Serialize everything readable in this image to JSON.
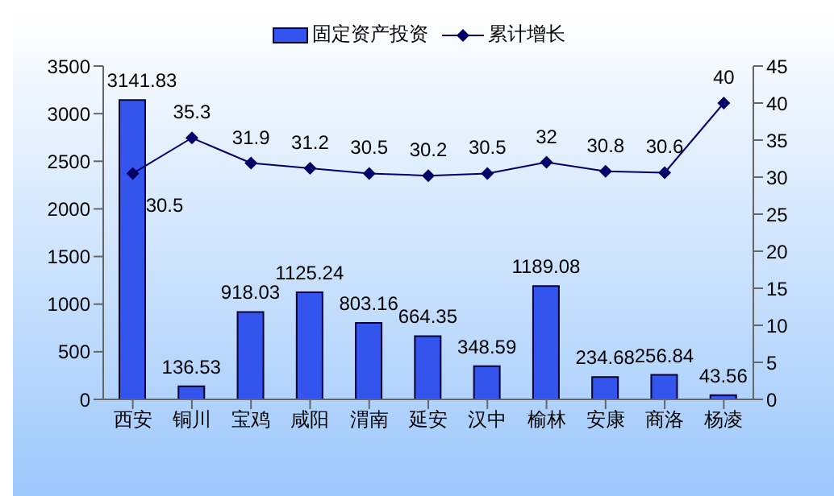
{
  "chart_data": {
    "type": "bar",
    "categories": [
      "西安",
      "铜川",
      "宝鸡",
      "咸阳",
      "渭南",
      "延安",
      "汉中",
      "榆林",
      "安康",
      "商洛",
      "杨凌"
    ],
    "series": [
      {
        "name": "固定资产投资",
        "color": "#3355ee",
        "values": [
          3141.83,
          136.53,
          918.03,
          1125.24,
          803.16,
          664.35,
          348.59,
          1189.08,
          234.68,
          256.84,
          43.56
        ]
      },
      {
        "name": "累计增长",
        "type": "line",
        "axis": "y2",
        "color": "#000066",
        "marker": "diamond",
        "values": [
          30.5,
          35.3,
          31.9,
          31.2,
          30.5,
          30.2,
          30.5,
          32,
          30.8,
          30.6,
          40
        ]
      }
    ],
    "ylim": [
      0,
      3500
    ],
    "yticks": [
      0,
      500,
      1000,
      1500,
      2000,
      2500,
      3000,
      3500
    ],
    "y2lim": [
      0,
      45
    ],
    "y2ticks": [
      0,
      5,
      10,
      15,
      20,
      25,
      30,
      35,
      40,
      45
    ],
    "grid": false,
    "legend": "top",
    "data_labels": true
  }
}
